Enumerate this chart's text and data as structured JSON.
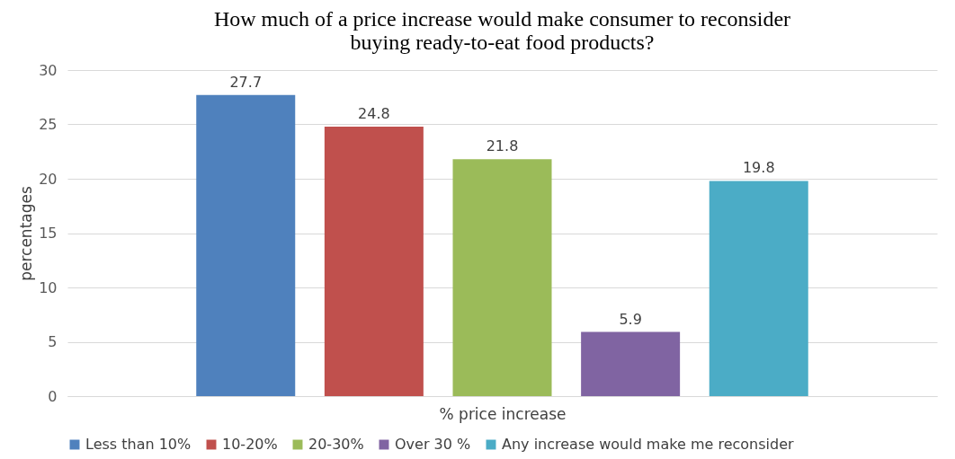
{
  "chart_data": {
    "type": "bar",
    "title": "How much of a price increase would make consumer to reconsider buying ready-to-eat food products?",
    "xlabel": "% price increase",
    "ylabel": "percentages",
    "categories": [
      null
    ],
    "series": [
      {
        "name": "Less than 10%",
        "color": "#4f81bd",
        "values": [
          27.7
        ]
      },
      {
        "name": "10-20%",
        "color": "#c0504d",
        "values": [
          24.8
        ]
      },
      {
        "name": "20-30%",
        "color": "#9bbb59",
        "values": [
          21.8
        ]
      },
      {
        "name": "Over 30 %",
        "color": "#8064a2",
        "values": [
          5.9
        ]
      },
      {
        "name": "Any increase would make me reconsider",
        "color": "#4bacc6",
        "values": [
          19.8
        ]
      }
    ],
    "ylim": [
      0,
      30
    ],
    "yticks": [
      0,
      5,
      10,
      15,
      20,
      25,
      30
    ],
    "grid": "y",
    "legend": "bottom",
    "data_labels": true,
    "tick_labels": "y"
  }
}
